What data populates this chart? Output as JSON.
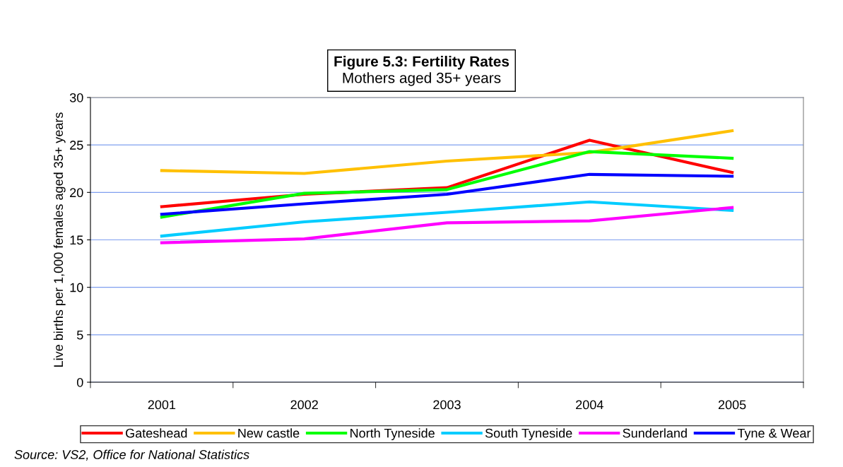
{
  "chart_data": {
    "type": "line",
    "title": "Figure 5.3: Fertility Rates",
    "subtitle": "Mothers aged 35+ years",
    "ylabel": "Live births per 1,000 females aged 35+ years",
    "categories": [
      "2001",
      "2002",
      "2003",
      "2004",
      "2005"
    ],
    "series": [
      {
        "name": "Gateshead",
        "color": "#ff0000",
        "values": [
          18.5,
          19.8,
          20.5,
          25.5,
          22.1
        ]
      },
      {
        "name": "New castle",
        "color": "#ffc000",
        "values": [
          22.3,
          22.0,
          23.3,
          24.2,
          26.5
        ]
      },
      {
        "name": "North Tyneside",
        "color": "#00ff00",
        "values": [
          17.4,
          19.9,
          20.3,
          24.3,
          23.6
        ]
      },
      {
        "name": "South Tyneside",
        "color": "#00ccff",
        "values": [
          15.4,
          16.9,
          17.9,
          19.0,
          18.1
        ]
      },
      {
        "name": "Sunderland",
        "color": "#ff00ff",
        "values": [
          14.7,
          15.1,
          16.8,
          17.0,
          18.4
        ]
      },
      {
        "name": "Tyne & Wear",
        "color": "#0000ff",
        "values": [
          17.7,
          18.8,
          19.8,
          21.9,
          21.7
        ]
      }
    ],
    "ylim": [
      0,
      30
    ],
    "yticks": [
      0,
      5,
      10,
      15,
      20,
      25,
      30
    ],
    "grid": "y",
    "legend": "bottom",
    "marker": "none",
    "line_style": "solid",
    "annotations": [
      "Source: VS2, Office for National Statistics"
    ]
  }
}
